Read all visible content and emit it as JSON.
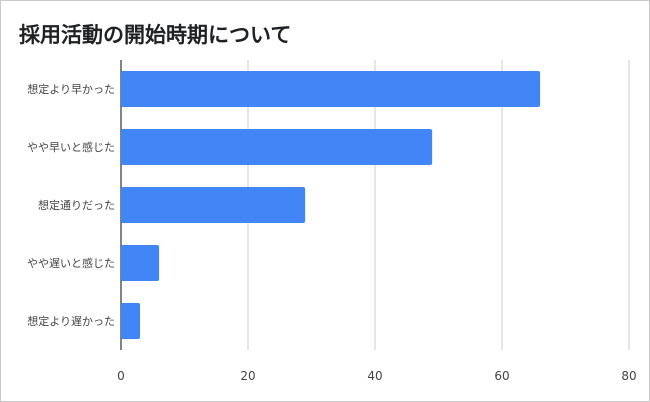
{
  "chart_data": {
    "type": "bar",
    "orientation": "horizontal",
    "title": "採用活動の開始時期について",
    "categories": [
      "想定より早かった",
      "やや早いと感じた",
      "想定通りだった",
      "やや遅いと感じた",
      "想定より遅かった"
    ],
    "values": [
      66,
      49,
      29,
      6,
      3
    ],
    "xlim": [
      0,
      80
    ],
    "xticks": [
      "0",
      "20",
      "40",
      "60",
      "80"
    ],
    "xlabel": "",
    "ylabel": "",
    "grid": true,
    "legend": "none",
    "bar_color": "#4285f4"
  }
}
